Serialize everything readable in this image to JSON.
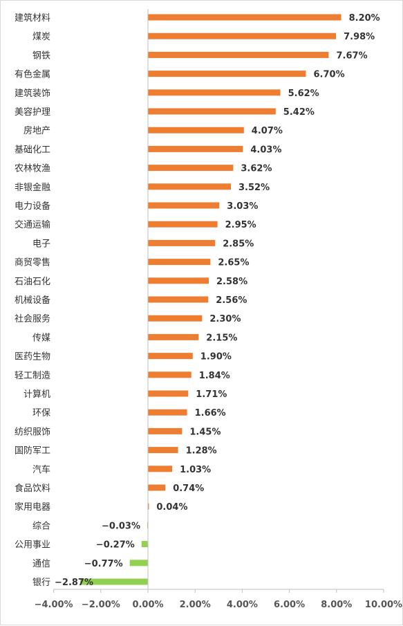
{
  "colors": {
    "positive": "#ED7D31",
    "negative": "#92D050",
    "axis": "#bfbfbf",
    "text": "#333333"
  },
  "chart_data": {
    "type": "bar",
    "orientation": "horizontal",
    "categories": [
      "建筑材料",
      "煤炭",
      "钢铁",
      "有色金属",
      "建筑装饰",
      "美容护理",
      "房地产",
      "基础化工",
      "农林牧渔",
      "非银金融",
      "电力设备",
      "交通运输",
      "电子",
      "商贸零售",
      "石油石化",
      "机械设备",
      "社会服务",
      "传媒",
      "医药生物",
      "轻工制造",
      "计算机",
      "环保",
      "纺织服饰",
      "国防军工",
      "汽车",
      "食品饮料",
      "家用电器",
      "综合",
      "公用事业",
      "通信",
      "银行"
    ],
    "values": [
      8.2,
      7.98,
      7.67,
      6.7,
      5.62,
      5.42,
      4.07,
      4.03,
      3.62,
      3.52,
      3.03,
      2.95,
      2.85,
      2.65,
      2.58,
      2.56,
      2.3,
      2.15,
      1.9,
      1.84,
      1.71,
      1.66,
      1.45,
      1.28,
      1.03,
      0.74,
      0.04,
      -0.03,
      -0.27,
      -0.77,
      -2.87
    ],
    "value_labels": [
      "8.20%",
      "7.98%",
      "7.67%",
      "6.70%",
      "5.62%",
      "5.42%",
      "4.07%",
      "4.03%",
      "3.62%",
      "3.52%",
      "3.03%",
      "2.95%",
      "2.85%",
      "2.65%",
      "2.58%",
      "2.56%",
      "2.30%",
      "2.15%",
      "1.90%",
      "1.84%",
      "1.71%",
      "1.66%",
      "1.45%",
      "1.28%",
      "1.03%",
      "0.74%",
      "0.04%",
      "−0.03%",
      "−0.27%",
      "−0.77%",
      "−2.87%"
    ],
    "xlim": [
      -4,
      10
    ],
    "x_ticks": [
      -4,
      -2,
      0,
      2,
      4,
      6,
      8,
      10
    ],
    "x_tick_labels": [
      "−4.00%",
      "−2.00%",
      "0.00%",
      "2.00%",
      "4.00%",
      "6.00%",
      "8.00%",
      "10.00%"
    ],
    "grid": false,
    "legend": "none",
    "title": "",
    "xlabel": "",
    "ylabel": ""
  }
}
